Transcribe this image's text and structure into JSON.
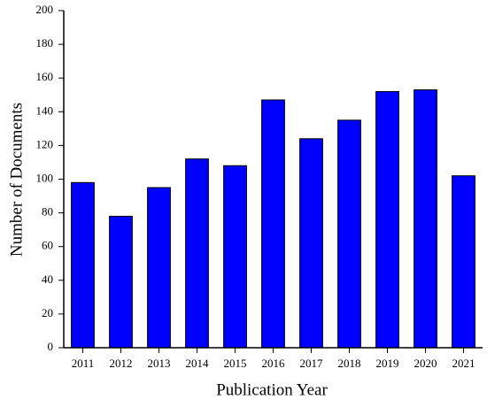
{
  "chart_data": {
    "type": "bar",
    "x_label": "Publication Year",
    "y_label": "Number of Documents",
    "categories": [
      "2011",
      "2012",
      "2013",
      "2014",
      "2015",
      "2016",
      "2017",
      "2018",
      "2019",
      "2020",
      "2021"
    ],
    "values": [
      98,
      78,
      95,
      112,
      108,
      147,
      124,
      135,
      152,
      153,
      102
    ],
    "color": "#0000ff",
    "ylim": [
      0,
      200
    ],
    "yticks": [
      0,
      20,
      40,
      60,
      80,
      100,
      120,
      140,
      160,
      180,
      200
    ]
  }
}
